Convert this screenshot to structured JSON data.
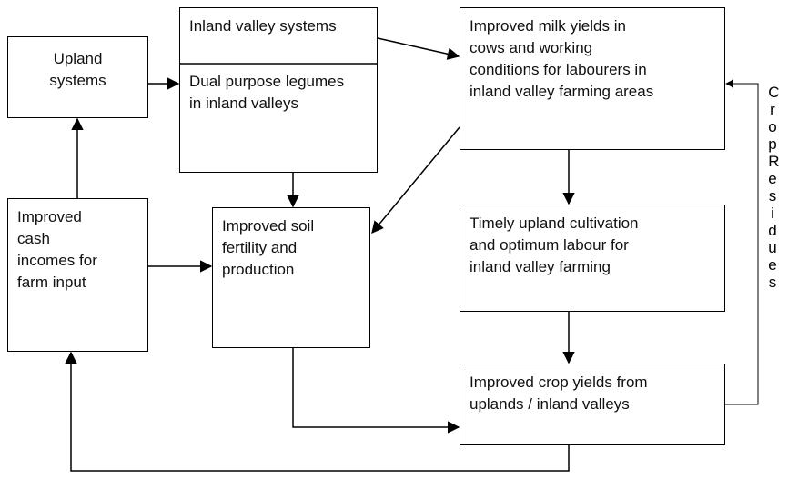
{
  "nodes": [
    {
      "id": "upland",
      "lines": [
        "Upland",
        "systems"
      ]
    },
    {
      "id": "inland",
      "lines": [
        "Inland valley systems"
      ]
    },
    {
      "id": "legumes",
      "lines": [
        "Dual purpose legumes",
        "in inland valleys"
      ]
    },
    {
      "id": "milk",
      "lines": [
        "Improved milk yields in",
        "cows and working",
        "conditions for labourers in",
        "inland valley farming areas"
      ]
    },
    {
      "id": "cash",
      "lines": [
        "Improved",
        "cash",
        "incomes for",
        "farm input"
      ]
    },
    {
      "id": "soil",
      "lines": [
        "Improved soil",
        "fertility and",
        "production"
      ]
    },
    {
      "id": "timely",
      "lines": [
        "Timely upland cultivation",
        "and optimum labour for",
        "inland valley farming"
      ]
    },
    {
      "id": "crop",
      "lines": [
        "Improved crop yields from",
        "uplands / inland valleys"
      ]
    }
  ],
  "side_label": "Crop Residues"
}
